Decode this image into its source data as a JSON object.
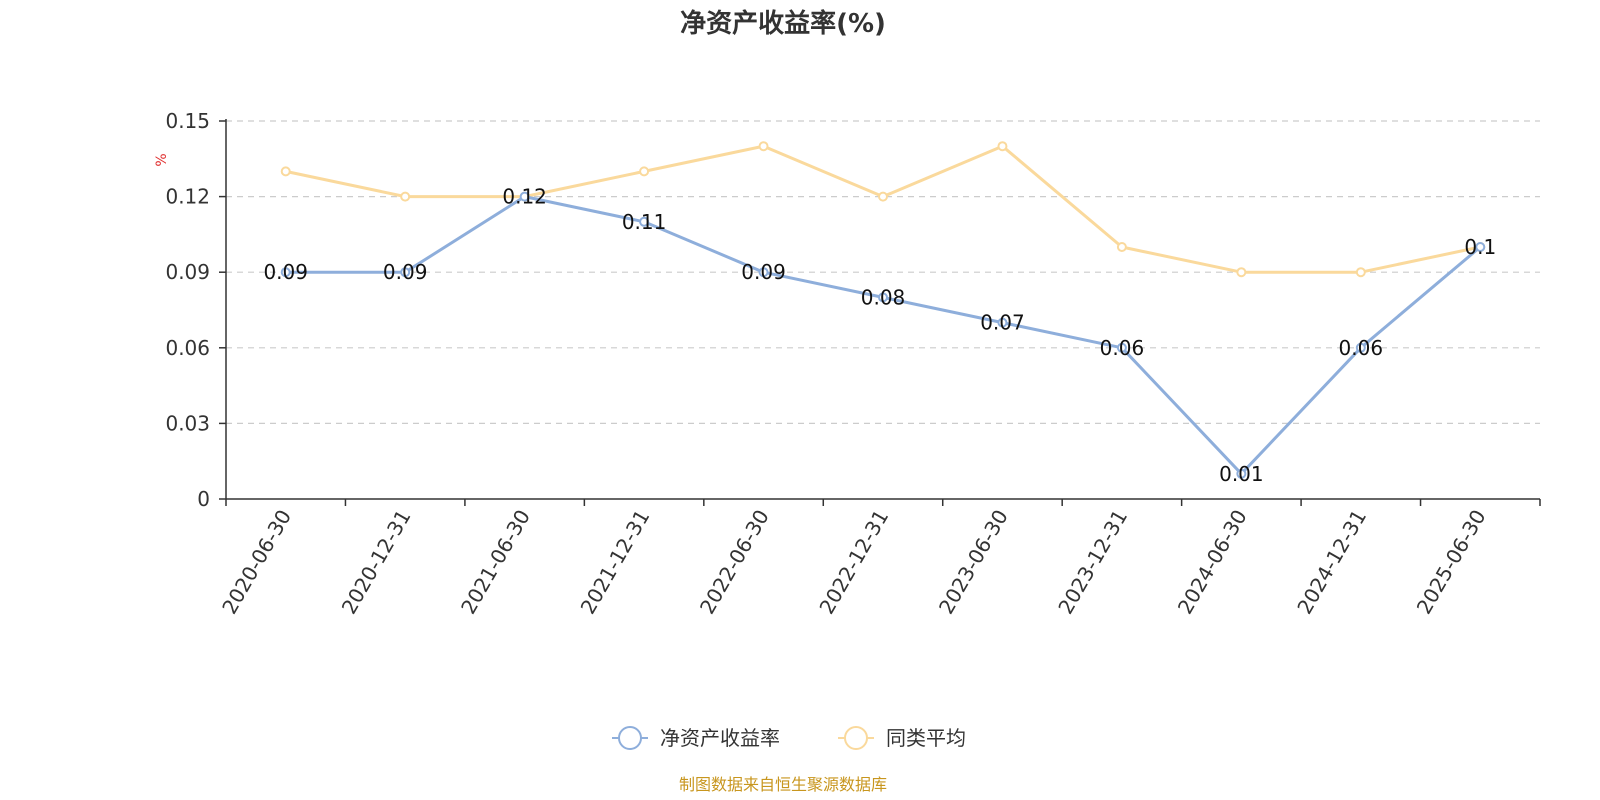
{
  "title": "净资产收益率(%)",
  "y_unit": "%",
  "footer": "制图数据来自恒生聚源数据库",
  "colors": {
    "series1": "#8eaedb",
    "series2": "#fad99c",
    "grid": "#cccccc",
    "axis": "#333333",
    "footer": "#c8961e",
    "unit": "#e03030"
  },
  "chart_data": {
    "type": "line",
    "title": "净资产收益率(%)",
    "ylabel": "%",
    "ylim": [
      0,
      0.15
    ],
    "yticks": [
      "0",
      "0.03",
      "0.06",
      "0.09",
      "0.12",
      "0.15"
    ],
    "grid": true,
    "legend_position": "bottom-center",
    "categories": [
      "2020-06-30",
      "2020-12-31",
      "2021-06-30",
      "2021-12-31",
      "2022-06-30",
      "2022-12-31",
      "2023-06-30",
      "2023-12-31",
      "2024-06-30",
      "2024-12-31",
      "2025-06-30"
    ],
    "series": [
      {
        "name": "净资产收益率",
        "values": [
          0.09,
          0.09,
          0.12,
          0.11,
          0.09,
          0.08,
          0.07,
          0.06,
          0.01,
          0.06,
          0.1
        ],
        "labels": [
          "0.09",
          "0.09",
          "0.12",
          "0.11",
          "0.09",
          "0.08",
          "0.07",
          "0.06",
          "0.01",
          "0.06",
          "0.1"
        ]
      },
      {
        "name": "同类平均",
        "values": [
          0.13,
          0.12,
          0.12,
          0.13,
          0.14,
          0.12,
          0.14,
          0.1,
          0.09,
          0.09,
          0.1
        ]
      }
    ]
  }
}
